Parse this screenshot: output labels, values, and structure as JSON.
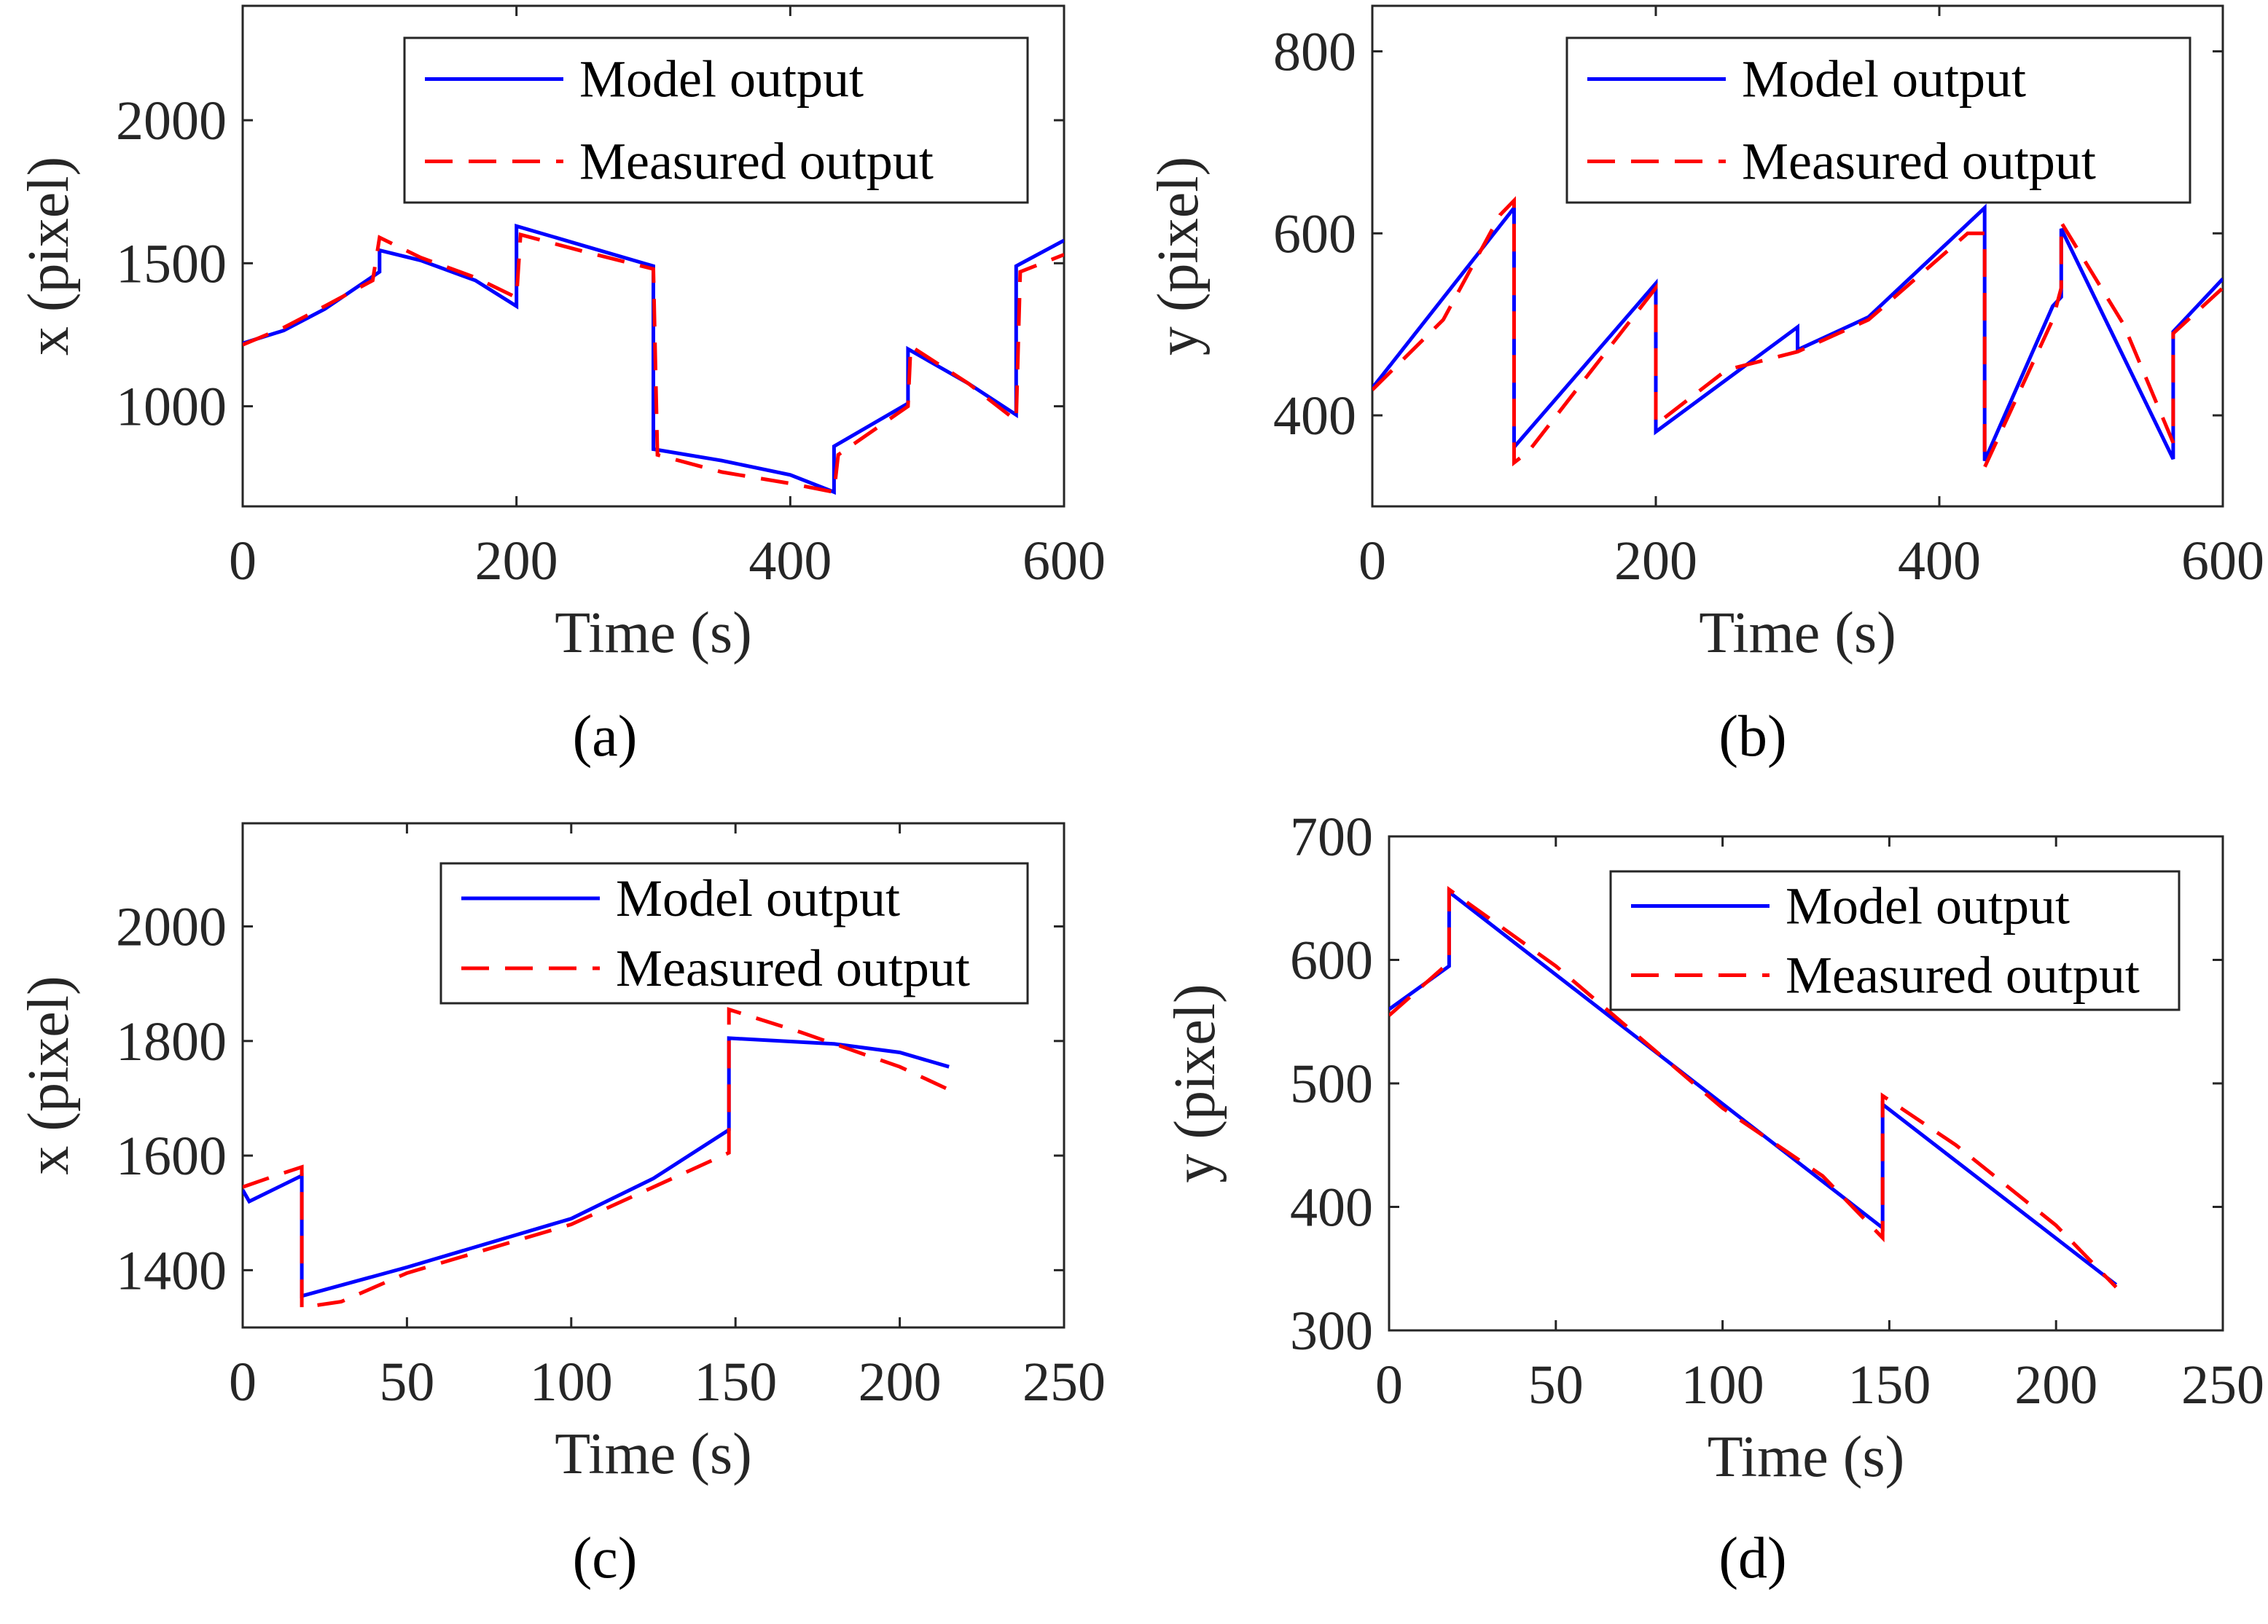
{
  "figure_captions": [
    "(a)",
    "(b)",
    "(c)",
    "(d)"
  ],
  "colors": {
    "model": "#0000ff",
    "measured": "#ff0000",
    "axes": "#262626"
  },
  "chart_data": [
    {
      "type": "line",
      "panel": "(a)",
      "title": "",
      "xlabel": "Time (s)",
      "ylabel": "x (pixel)",
      "xlim": [
        0,
        600
      ],
      "ylim": [
        650,
        2400
      ],
      "xticks": [
        0,
        200,
        400,
        600
      ],
      "yticks": [
        1000,
        1500,
        2000
      ],
      "legend_position": "top-right",
      "legend": [
        "Model output",
        "Measured output"
      ],
      "series": [
        {
          "name": "Model output",
          "x": [
            0,
            30,
            60,
            100,
            100,
            130,
            170,
            200,
            200,
            250,
            300,
            300,
            350,
            400,
            432,
            432,
            486,
            486,
            530,
            565,
            565,
            600
          ],
          "y": [
            1220,
            1265,
            1340,
            1470,
            1545,
            1510,
            1440,
            1350,
            1630,
            1560,
            1490,
            850,
            810,
            760,
            700,
            860,
            1010,
            1200,
            1080,
            970,
            1490,
            1580
          ]
        },
        {
          "name": "Measured output",
          "x": [
            0,
            30,
            60,
            95,
            100,
            130,
            170,
            200,
            203,
            250,
            300,
            303,
            350,
            400,
            432,
            435,
            486,
            488,
            530,
            565,
            568,
            600
          ],
          "y": [
            1215,
            1275,
            1350,
            1440,
            1590,
            1520,
            1450,
            1380,
            1600,
            1540,
            1480,
            830,
            770,
            730,
            700,
            830,
            1000,
            1210,
            1080,
            950,
            1470,
            1530
          ]
        }
      ]
    },
    {
      "type": "line",
      "panel": "(b)",
      "title": "",
      "xlabel": "Time (s)",
      "ylabel": "y (pixel)",
      "xlim": [
        0,
        600
      ],
      "ylim": [
        300,
        850
      ],
      "xticks": [
        0,
        200,
        400,
        600
      ],
      "yticks": [
        400,
        600,
        800
      ],
      "legend_position": "top-right",
      "legend": [
        "Model output",
        "Measured output"
      ],
      "series": [
        {
          "name": "Model output",
          "x": [
            0,
            100,
            100,
            200,
            200,
            300,
            300,
            350,
            432,
            432,
            480,
            486,
            486,
            565,
            565,
            600
          ],
          "y": [
            430,
            628,
            365,
            545,
            382,
            497,
            472,
            508,
            628,
            350,
            520,
            530,
            605,
            352,
            492,
            550
          ]
        },
        {
          "name": "Measured output",
          "x": [
            0,
            50,
            90,
            100,
            100,
            110,
            200,
            200,
            250,
            300,
            350,
            420,
            432,
            432,
            480,
            486,
            486,
            530,
            565,
            565,
            600
          ],
          "y": [
            428,
            505,
            620,
            636,
            348,
            360,
            540,
            390,
            450,
            470,
            505,
            600,
            600,
            343,
            505,
            540,
            612,
            500,
            370,
            490,
            540
          ]
        }
      ]
    },
    {
      "type": "line",
      "panel": "(c)",
      "title": "",
      "xlabel": "Time (s)",
      "ylabel": "x (pixel)",
      "xlim": [
        0,
        250
      ],
      "ylim": [
        1300,
        2180
      ],
      "xticks": [
        0,
        50,
        100,
        150,
        200,
        250
      ],
      "yticks": [
        1400,
        1600,
        1800,
        2000
      ],
      "legend_position": "top-right",
      "legend": [
        "Model output",
        "Measured output"
      ],
      "series": [
        {
          "name": "Model output",
          "x": [
            0,
            2,
            18,
            18,
            50,
            100,
            125,
            148,
            148,
            180,
            200,
            215
          ],
          "y": [
            1540,
            1520,
            1565,
            1355,
            1405,
            1490,
            1560,
            1645,
            1805,
            1795,
            1780,
            1755
          ]
        },
        {
          "name": "Measured output",
          "x": [
            0,
            10,
            18,
            18,
            30,
            50,
            100,
            125,
            148,
            148,
            170,
            200,
            215
          ],
          "y": [
            1545,
            1565,
            1580,
            1335,
            1345,
            1395,
            1480,
            1545,
            1605,
            1855,
            1815,
            1755,
            1715
          ]
        }
      ]
    },
    {
      "type": "line",
      "panel": "(d)",
      "title": "",
      "xlabel": "Time (s)",
      "ylabel": "y (pixel)",
      "xlim": [
        0,
        250
      ],
      "ylim": [
        300,
        700
      ],
      "xticks": [
        0,
        50,
        100,
        150,
        200,
        250
      ],
      "yticks": [
        300,
        400,
        500,
        600,
        700
      ],
      "legend_position": "top-right",
      "legend": [
        "Model output",
        "Measured output"
      ],
      "series": [
        {
          "name": "Model output",
          "x": [
            0,
            18,
            18,
            148,
            148,
            218
          ],
          "y": [
            560,
            595,
            655,
            383,
            483,
            337
          ]
        },
        {
          "name": "Measured output",
          "x": [
            0,
            18,
            18,
            50,
            100,
            130,
            148,
            148,
            170,
            200,
            218
          ],
          "y": [
            555,
            598,
            657,
            595,
            480,
            425,
            375,
            490,
            450,
            385,
            335
          ]
        }
      ]
    }
  ]
}
